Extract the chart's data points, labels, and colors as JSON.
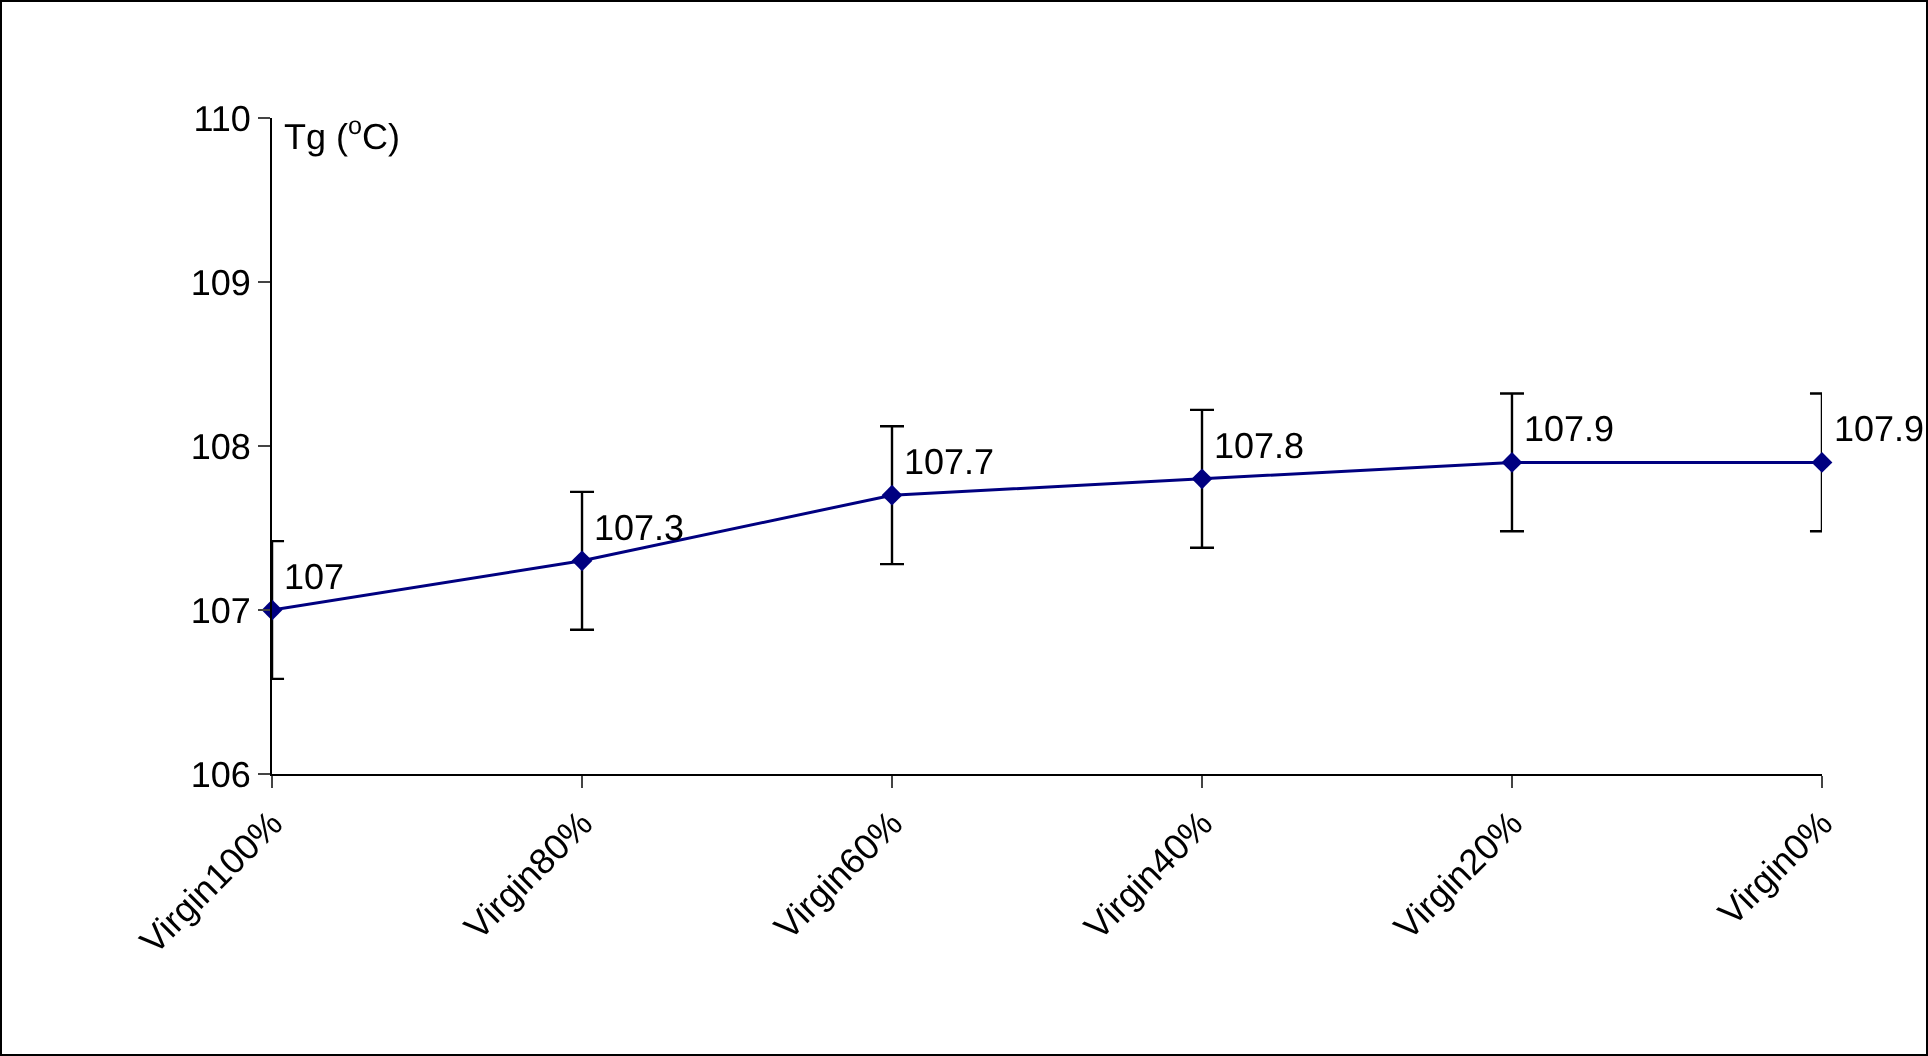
{
  "chart_data": {
    "type": "line",
    "ylabel": "Tg ($^{o}$C)",
    "categories": [
      "Virgin100%",
      "Virgin80%",
      "Virgin60%",
      "Virgin40%",
      "Virgin20%",
      "Virgin0%"
    ],
    "series": [
      {
        "color": "#000080",
        "values": [
          107,
          107.3,
          107.7,
          107.8,
          107.9,
          107.9
        ],
        "errors": [
          0.42,
          0.42,
          0.42,
          0.42,
          0.42,
          0.42
        ]
      }
    ],
    "ylim": [
      106,
      110
    ],
    "yticks": [
      106,
      107,
      108,
      109,
      110
    ],
    "grid": false,
    "marker": "diamond",
    "line_style": "solid",
    "data_labels": true
  }
}
